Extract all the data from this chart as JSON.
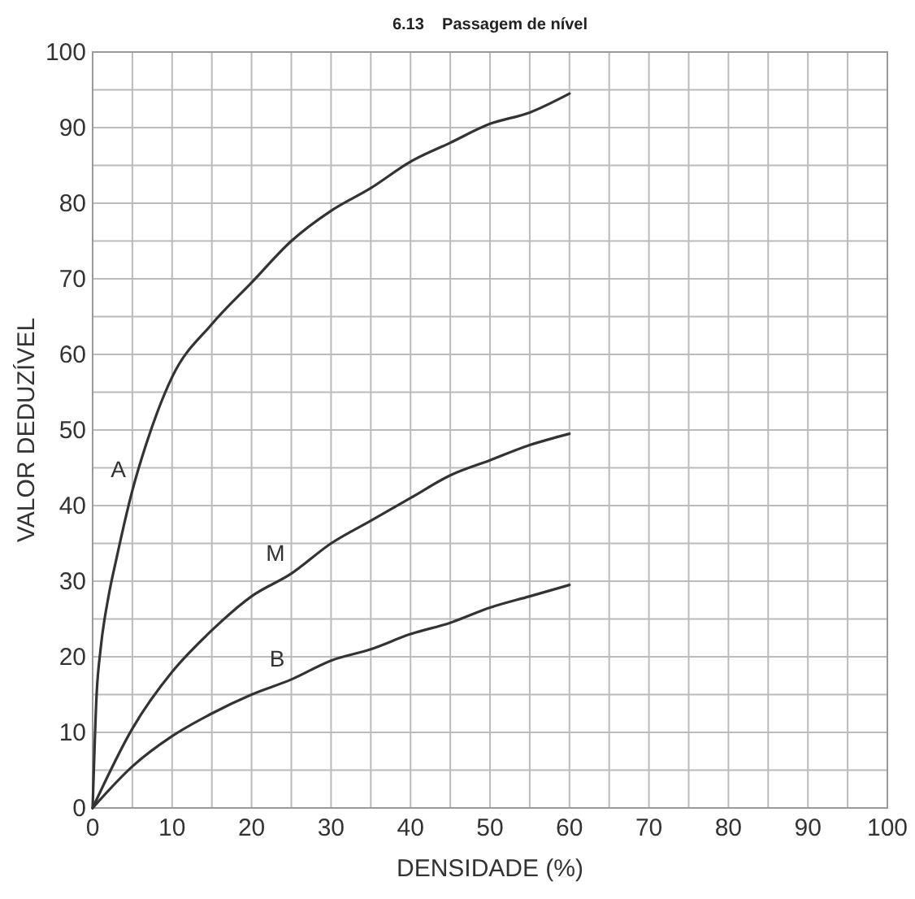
{
  "chart_data": {
    "type": "line",
    "title": "6.13    Passagem de nível",
    "xlabel": "DENSIDADE (%)",
    "ylabel": "VALOR DEDUZÍVEL",
    "xlim": [
      0,
      100
    ],
    "ylim": [
      0,
      100
    ],
    "xticks": [
      0,
      {
        "value": 5,
        "label": null
      },
      10,
      {
        "value": 15,
        "label": null
      },
      20,
      {
        "value": 25,
        "label": null
      },
      30,
      {
        "value": 35,
        "label": null
      },
      40,
      {
        "value": 45,
        "label": null
      },
      50,
      {
        "value": 55,
        "label": null
      },
      60,
      {
        "value": 65,
        "label": null
      },
      70,
      {
        "value": 75,
        "label": null
      },
      80,
      {
        "value": 85,
        "label": null
      },
      90,
      {
        "value": 95,
        "label": null
      },
      100
    ],
    "yticks": [
      0,
      {
        "value": 5,
        "label": null
      },
      10,
      {
        "value": 15,
        "label": null
      },
      20,
      {
        "value": 25,
        "label": null
      },
      30,
      {
        "value": 35,
        "label": null
      },
      40,
      {
        "value": 45,
        "label": null
      },
      50,
      {
        "value": 55,
        "label": null
      },
      60,
      {
        "value": 65,
        "label": null
      },
      70,
      {
        "value": 75,
        "label": null
      },
      80,
      {
        "value": 85,
        "label": null
      },
      90,
      {
        "value": 95,
        "label": null
      },
      100
    ],
    "grid": true,
    "marker": "none",
    "line_style": "solid",
    "series": [
      {
        "name": "A",
        "color": "#333333",
        "x": [
          0,
          0.5,
          1,
          2,
          3,
          5,
          6.7,
          10,
          15,
          20,
          25,
          30,
          35,
          40,
          45,
          50,
          55,
          60
        ],
        "values": [
          0,
          15,
          21,
          28,
          33,
          42,
          48,
          57,
          64,
          69.5,
          75,
          79,
          82,
          85.5,
          88,
          90.5,
          92,
          94.5
        ]
      },
      {
        "name": "M",
        "color": "#333333",
        "x": [
          0,
          5,
          10,
          15,
          20,
          25,
          30,
          35,
          40,
          45,
          50,
          55,
          60
        ],
        "values": [
          0,
          10.5,
          18,
          23.5,
          28,
          31,
          35,
          38,
          41,
          44,
          46,
          48,
          49.5
        ]
      },
      {
        "name": "B",
        "color": "#333333",
        "x": [
          0,
          5,
          10,
          15,
          20,
          25,
          30,
          35,
          40,
          45,
          50,
          55,
          60
        ],
        "values": [
          0,
          5.5,
          9.5,
          12.5,
          15,
          17,
          19.5,
          21,
          23,
          24.5,
          26.5,
          28,
          29.5
        ]
      }
    ]
  }
}
